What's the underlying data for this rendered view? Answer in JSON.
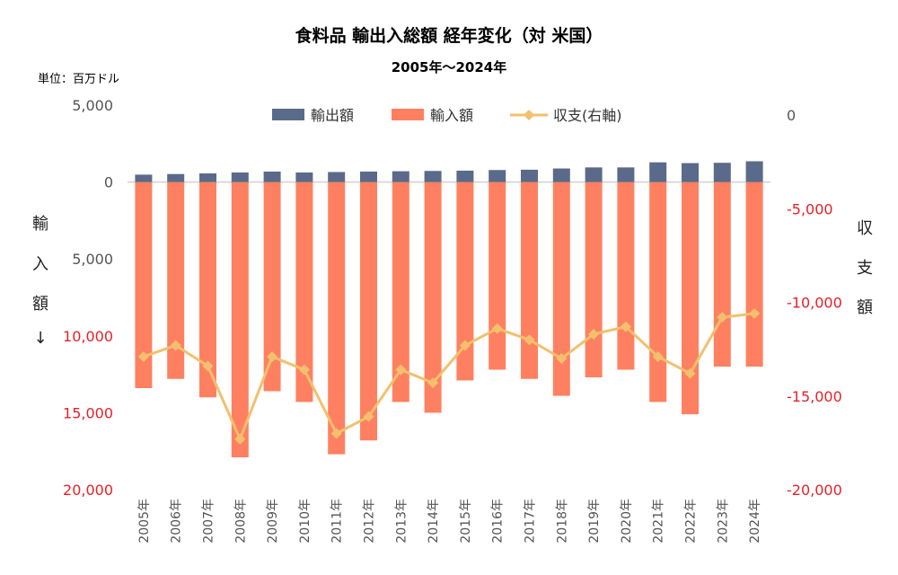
{
  "chart_data": {
    "type": "bar",
    "title": "食料品 輸出入総額 経年変化（対 米国）",
    "subtitle": "2005年～2024年",
    "unit_note": "単位：百万ドル",
    "ylabel_left": [
      "輸",
      "入",
      "額",
      "↓"
    ],
    "ylabel_right": [
      "収",
      "支",
      "額"
    ],
    "categories": [
      "2005年",
      "2006年",
      "2007年",
      "2008年",
      "2009年",
      "2010年",
      "2011年",
      "2012年",
      "2013年",
      "2014年",
      "2015年",
      "2016年",
      "2017年",
      "2018年",
      "2019年",
      "2020年",
      "2021年",
      "2022年",
      "2023年",
      "2024年"
    ],
    "series": [
      {
        "name": "輸出額",
        "color": "#5a6a8a",
        "axis": "left",
        "values": [
          480,
          520,
          560,
          620,
          680,
          620,
          650,
          680,
          700,
          720,
          740,
          780,
          800,
          880,
          950,
          950,
          1280,
          1230,
          1250,
          1350
        ]
      },
      {
        "name": "輸入額",
        "color": "#ff8060",
        "axis": "left",
        "values": [
          13400,
          12800,
          14000,
          17900,
          13600,
          14300,
          17700,
          16800,
          14300,
          15000,
          12900,
          12200,
          12800,
          13900,
          12700,
          12200,
          14300,
          15100,
          12000,
          12000
        ]
      },
      {
        "name": "収支(右軸)",
        "color": "#f2c06e",
        "axis": "right",
        "type": "line",
        "values": [
          -12900,
          -12300,
          -13400,
          -17300,
          -12900,
          -13600,
          -17000,
          -16100,
          -13600,
          -14300,
          -12300,
          -11400,
          -12000,
          -13000,
          -11700,
          -11300,
          -12900,
          -13800,
          -10800,
          -10600
        ]
      }
    ],
    "left_axis": {
      "ylim": [
        -5000,
        20000
      ],
      "ticks": [
        -5000,
        0,
        5000,
        10000,
        15000,
        20000
      ],
      "tick_labels": [
        "5,000",
        "0",
        "5,000",
        "10,000",
        "15,000",
        "20,000"
      ],
      "red_from": 10000,
      "note": "imports plotted downward"
    },
    "right_axis": {
      "ylim": [
        -20000,
        0
      ],
      "ticks": [
        0,
        -5000,
        -10000,
        -15000,
        -20000
      ],
      "tick_labels": [
        "0",
        "-5,000",
        "-10,000",
        "-15,000",
        "-20,000"
      ]
    },
    "legend_position": "top"
  }
}
